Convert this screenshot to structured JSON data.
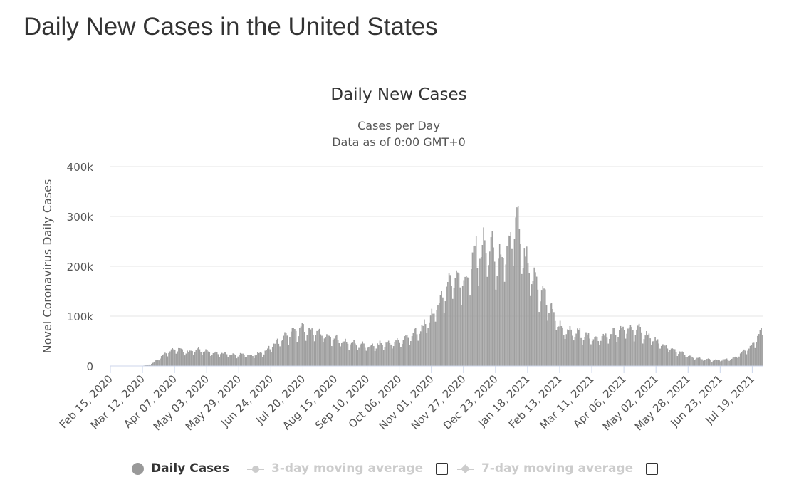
{
  "page": {
    "title": "Daily New Cases in the United States"
  },
  "chart_data": {
    "type": "bar",
    "title": "Daily New Cases",
    "subtitle_lines": [
      "Cases per Day",
      "Data as of 0:00 GMT+0"
    ],
    "ylabel": "Novel Coronavirus Daily Cases",
    "ylim": [
      0,
      400000
    ],
    "y_ticks": [
      0,
      100000,
      200000,
      300000,
      400000
    ],
    "y_tick_labels": [
      "0",
      "100k",
      "200k",
      "300k",
      "400k"
    ],
    "x_range": [
      "2020-02-15",
      "2021-07-27"
    ],
    "x_tick_dates": [
      "2020-02-15",
      "2020-03-12",
      "2020-04-07",
      "2020-05-03",
      "2020-05-29",
      "2020-06-24",
      "2020-07-20",
      "2020-08-15",
      "2020-09-10",
      "2020-10-06",
      "2020-11-01",
      "2020-11-27",
      "2020-12-23",
      "2021-01-18",
      "2021-02-13",
      "2021-03-11",
      "2021-04-06",
      "2021-05-02",
      "2021-05-28",
      "2021-06-23",
      "2021-07-19"
    ],
    "x_tick_labels": [
      "Feb 15, 2020",
      "Mar 12, 2020",
      "Apr 07, 2020",
      "May 03, 2020",
      "May 29, 2020",
      "Jun 24, 2020",
      "Jul 20, 2020",
      "Aug 15, 2020",
      "Sep 10, 2020",
      "Oct 06, 2020",
      "Nov 01, 2020",
      "Nov 27, 2020",
      "Dec 23, 2020",
      "Jan 18, 2021",
      "Feb 13, 2021",
      "Mar 11, 2021",
      "Apr 06, 2021",
      "May 02, 2021",
      "May 28, 2021",
      "Jun 23, 2021",
      "Jul 19, 2021"
    ],
    "series": [
      {
        "name": "Daily Cases",
        "color": "#a0a0a0",
        "points": [
          [
            "2020-02-15",
            0
          ],
          [
            "2020-03-01",
            50
          ],
          [
            "2020-03-08",
            300
          ],
          [
            "2020-03-12",
            450
          ],
          [
            "2020-03-16",
            1800
          ],
          [
            "2020-03-19",
            4700
          ],
          [
            "2020-03-23",
            10500
          ],
          [
            "2020-03-27",
            18000
          ],
          [
            "2020-03-31",
            25000
          ],
          [
            "2020-04-04",
            32000
          ],
          [
            "2020-04-10",
            33000
          ],
          [
            "2020-04-18",
            28000
          ],
          [
            "2020-04-24",
            33000
          ],
          [
            "2020-05-01",
            30000
          ],
          [
            "2020-05-08",
            26000
          ],
          [
            "2020-05-16",
            24000
          ],
          [
            "2020-05-24",
            22000
          ],
          [
            "2020-06-01",
            22000
          ],
          [
            "2020-06-08",
            20000
          ],
          [
            "2020-06-15",
            24000
          ],
          [
            "2020-06-20",
            30000
          ],
          [
            "2020-06-26",
            42000
          ],
          [
            "2020-07-03",
            54000
          ],
          [
            "2020-07-10",
            64000
          ],
          [
            "2020-07-17",
            72000
          ],
          [
            "2020-07-24",
            70000
          ],
          [
            "2020-07-31",
            66000
          ],
          [
            "2020-08-07",
            57000
          ],
          [
            "2020-08-14",
            54000
          ],
          [
            "2020-08-21",
            48000
          ],
          [
            "2020-08-28",
            44000
          ],
          [
            "2020-09-04",
            42000
          ],
          [
            "2020-09-11",
            37000
          ],
          [
            "2020-09-18",
            41000
          ],
          [
            "2020-09-25",
            44000
          ],
          [
            "2020-10-02",
            45000
          ],
          [
            "2020-10-09",
            52000
          ],
          [
            "2020-10-16",
            60000
          ],
          [
            "2020-10-23",
            70000
          ],
          [
            "2020-10-30",
            90000
          ],
          [
            "2020-11-06",
            120000
          ],
          [
            "2020-11-13",
            155000
          ],
          [
            "2020-11-20",
            180000
          ],
          [
            "2020-11-24",
            170000
          ],
          [
            "2020-11-30",
            165000
          ],
          [
            "2020-12-04",
            215000
          ],
          [
            "2020-12-10",
            225000
          ],
          [
            "2020-12-17",
            235000
          ],
          [
            "2020-12-24",
            205000
          ],
          [
            "2020-12-31",
            215000
          ],
          [
            "2021-01-04",
            240000
          ],
          [
            "2021-01-08",
            285000
          ],
          [
            "2021-01-13",
            235000
          ],
          [
            "2021-01-18",
            185000
          ],
          [
            "2021-01-23",
            170000
          ],
          [
            "2021-01-28",
            150000
          ],
          [
            "2021-02-03",
            125000
          ],
          [
            "2021-02-08",
            100000
          ],
          [
            "2021-02-15",
            70000
          ],
          [
            "2021-02-22",
            65000
          ],
          [
            "2021-03-01",
            64000
          ],
          [
            "2021-03-08",
            56000
          ],
          [
            "2021-03-15",
            54000
          ],
          [
            "2021-03-22",
            57000
          ],
          [
            "2021-03-29",
            65000
          ],
          [
            "2021-04-05",
            70000
          ],
          [
            "2021-04-12",
            73000
          ],
          [
            "2021-04-19",
            68000
          ],
          [
            "2021-04-26",
            58000
          ],
          [
            "2021-05-03",
            46000
          ],
          [
            "2021-05-10",
            37000
          ],
          [
            "2021-05-17",
            30000
          ],
          [
            "2021-05-24",
            24000
          ],
          [
            "2021-05-31",
            16000
          ],
          [
            "2021-06-07",
            14000
          ],
          [
            "2021-06-14",
            12000
          ],
          [
            "2021-06-21",
            11000
          ],
          [
            "2021-06-28",
            12500
          ],
          [
            "2021-07-05",
            16000
          ],
          [
            "2021-07-12",
            28000
          ],
          [
            "2021-07-19",
            42000
          ],
          [
            "2021-07-24",
            60000
          ],
          [
            "2021-07-27",
            70000
          ]
        ]
      }
    ],
    "grid": true,
    "legend_position": "bottom"
  },
  "legend": {
    "daily_cases_label": "Daily Cases",
    "daily_cases_color": "#999999",
    "ma3_label": "3-day moving average",
    "ma7_label": "7-day moving average",
    "inactive_color": "#cccccc",
    "active_text_color": "#333333"
  }
}
